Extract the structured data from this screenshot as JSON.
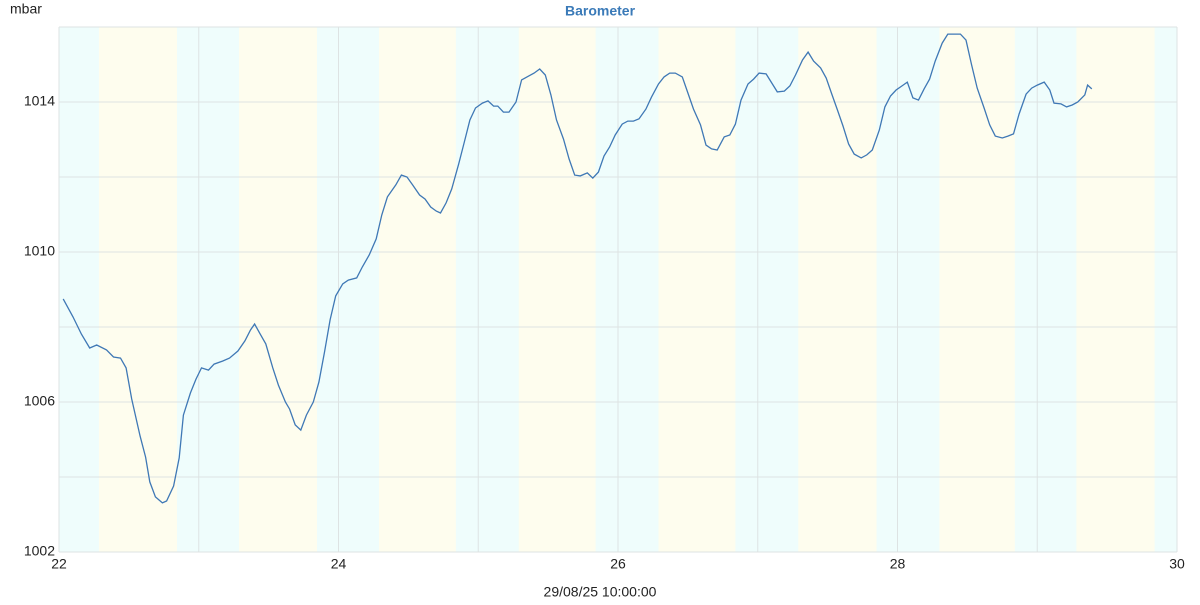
{
  "chart_data": {
    "type": "line",
    "title": "Barometer",
    "ylabel": "mbar",
    "xlabel": "29/08/25 10:00:00",
    "color": "#3f78b5",
    "title_color": "#3a7ab8",
    "background_color": "#effdfc",
    "day_color": "#fefdee",
    "grid": true,
    "xlim": [
      22,
      30
    ],
    "xticks": [
      22,
      24,
      26,
      28,
      30
    ],
    "xminor": [
      23,
      25,
      27,
      29
    ],
    "ylim": [
      1002,
      1016
    ],
    "yticks": [
      1002,
      1006,
      1010,
      1014
    ],
    "yminor": [
      1004,
      1008,
      1012,
      1016
    ],
    "day_periods": [
      [
        22.286,
        22.844
      ],
      [
        23.288,
        23.846
      ],
      [
        24.29,
        24.84
      ],
      [
        25.29,
        25.84
      ],
      [
        26.29,
        26.84
      ],
      [
        27.29,
        27.85
      ],
      [
        28.3,
        28.84
      ],
      [
        29.28,
        29.84
      ]
    ],
    "x": [
      22.03,
      22.1,
      22.16,
      22.22,
      22.27,
      22.34,
      22.39,
      22.44,
      22.48,
      22.52,
      22.58,
      22.62,
      22.65,
      22.69,
      22.74,
      22.77,
      22.82,
      22.86,
      22.89,
      22.94,
      22.98,
      23.02,
      23.07,
      23.11,
      23.17,
      23.22,
      23.28,
      23.33,
      23.37,
      23.4,
      23.44,
      23.48,
      23.53,
      23.57,
      23.62,
      23.65,
      23.69,
      23.73,
      23.77,
      23.82,
      23.86,
      23.9,
      23.94,
      23.98,
      24.03,
      24.07,
      24.13,
      24.17,
      24.22,
      24.27,
      24.31,
      24.35,
      24.41,
      24.45,
      24.49,
      24.53,
      24.58,
      24.62,
      24.66,
      24.7,
      24.73,
      24.77,
      24.81,
      24.86,
      24.9,
      24.94,
      24.98,
      25.03,
      25.07,
      25.11,
      25.14,
      25.18,
      25.22,
      25.27,
      25.31,
      25.36,
      25.4,
      25.44,
      25.48,
      25.52,
      25.56,
      25.61,
      25.65,
      25.69,
      25.73,
      25.78,
      25.82,
      25.86,
      25.9,
      25.94,
      25.98,
      26.03,
      26.07,
      26.11,
      26.15,
      26.2,
      26.24,
      26.29,
      26.33,
      26.37,
      26.41,
      26.46,
      26.5,
      26.54,
      26.59,
      26.63,
      26.67,
      26.71,
      26.76,
      26.8,
      26.84,
      26.88,
      26.93,
      26.97,
      27.01,
      27.06,
      27.1,
      27.14,
      27.19,
      27.23,
      27.27,
      27.32,
      27.36,
      27.4,
      27.45,
      27.49,
      27.53,
      27.57,
      27.61,
      27.65,
      27.69,
      27.74,
      27.78,
      27.82,
      27.87,
      27.91,
      27.95,
      27.99,
      28.04,
      28.07,
      28.11,
      28.15,
      28.19,
      28.23,
      28.27,
      28.32,
      28.36,
      28.4,
      28.45,
      28.49,
      28.53,
      28.57,
      28.62,
      28.66,
      28.7,
      28.75,
      28.79,
      28.83,
      28.87,
      28.92,
      28.96,
      29.0,
      29.05,
      29.09,
      29.12,
      29.17,
      29.21,
      29.25,
      29.29,
      29.34,
      29.36,
      29.39
    ],
    "values": [
      1008.75,
      1008.27,
      1007.81,
      1007.44,
      1007.52,
      1007.39,
      1007.2,
      1007.17,
      1006.91,
      1006.08,
      1005.09,
      1004.53,
      1003.87,
      1003.47,
      1003.31,
      1003.36,
      1003.76,
      1004.51,
      1005.65,
      1006.24,
      1006.61,
      1006.91,
      1006.85,
      1007.01,
      1007.09,
      1007.17,
      1007.36,
      1007.63,
      1007.92,
      1008.08,
      1007.81,
      1007.55,
      1006.91,
      1006.45,
      1006.0,
      1005.81,
      1005.39,
      1005.25,
      1005.65,
      1006.0,
      1006.53,
      1007.33,
      1008.19,
      1008.83,
      1009.15,
      1009.25,
      1009.31,
      1009.6,
      1009.92,
      1010.35,
      1010.99,
      1011.47,
      1011.79,
      1012.05,
      1012.0,
      1011.79,
      1011.52,
      1011.41,
      1011.2,
      1011.09,
      1011.04,
      1011.31,
      1011.68,
      1012.35,
      1012.93,
      1013.52,
      1013.84,
      1013.97,
      1014.03,
      1013.89,
      1013.89,
      1013.73,
      1013.73,
      1014.0,
      1014.59,
      1014.69,
      1014.77,
      1014.88,
      1014.72,
      1014.19,
      1013.52,
      1013.01,
      1012.48,
      1012.05,
      1012.03,
      1012.11,
      1011.97,
      1012.13,
      1012.56,
      1012.8,
      1013.12,
      1013.41,
      1013.49,
      1013.49,
      1013.55,
      1013.81,
      1014.13,
      1014.48,
      1014.67,
      1014.77,
      1014.77,
      1014.67,
      1014.24,
      1013.81,
      1013.39,
      1012.85,
      1012.75,
      1012.72,
      1013.07,
      1013.12,
      1013.41,
      1014.05,
      1014.48,
      1014.61,
      1014.77,
      1014.75,
      1014.51,
      1014.27,
      1014.29,
      1014.43,
      1014.72,
      1015.12,
      1015.33,
      1015.09,
      1014.91,
      1014.64,
      1014.21,
      1013.79,
      1013.36,
      1012.88,
      1012.61,
      1012.51,
      1012.59,
      1012.72,
      1013.25,
      1013.87,
      1014.16,
      1014.32,
      1014.45,
      1014.53,
      1014.11,
      1014.05,
      1014.35,
      1014.61,
      1015.09,
      1015.57,
      1015.81,
      1015.81,
      1015.81,
      1015.65,
      1014.99,
      1014.37,
      1013.84,
      1013.39,
      1013.09,
      1013.04,
      1013.09,
      1013.15,
      1013.68,
      1014.21,
      1014.37,
      1014.45,
      1014.53,
      1014.32,
      1013.97,
      1013.95,
      1013.87,
      1013.92,
      1014.0,
      1014.19,
      1014.45,
      1014.35
    ]
  }
}
